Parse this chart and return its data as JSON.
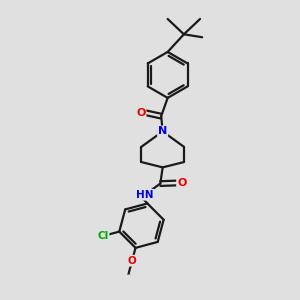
{
  "background_color": "#e0e0e0",
  "bond_color": "#1a1a1a",
  "bond_width": 1.6,
  "atom_colors": {
    "N": "#0000ee",
    "O": "#ee0000",
    "Cl": "#00aa00",
    "C": "#1a1a1a",
    "H": "#1a1a1a"
  },
  "figsize": [
    3.0,
    3.0
  ],
  "dpi": 100,
  "xlim": [
    0,
    10
  ],
  "ylim": [
    0,
    10
  ]
}
